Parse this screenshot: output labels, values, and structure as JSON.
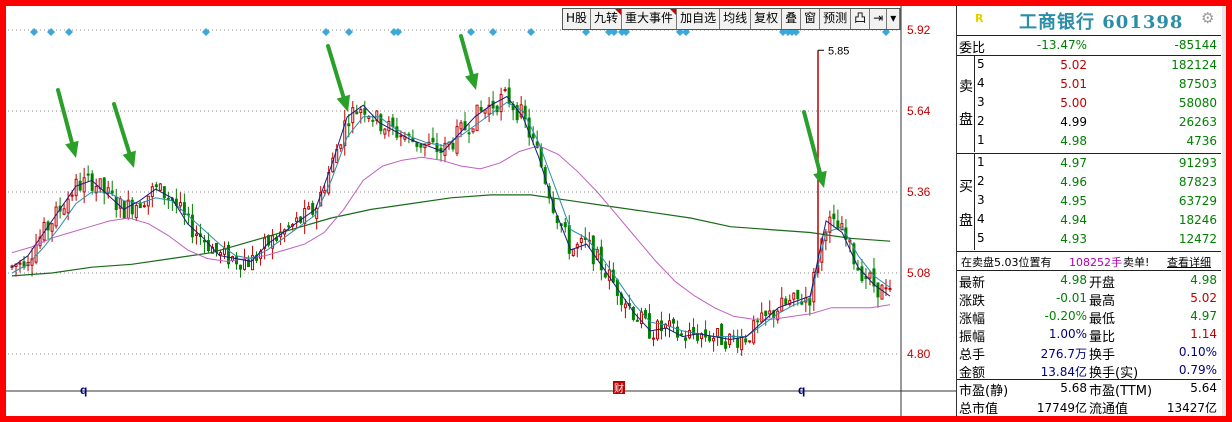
{
  "toolbar": [
    {
      "label": "H股",
      "flag": false
    },
    {
      "label": "九转",
      "flag": true
    },
    {
      "label": "重大事件",
      "flag": true
    },
    {
      "label": "加自选",
      "flag": false
    },
    {
      "label": "均线",
      "flag": false
    },
    {
      "label": "复权",
      "flag": false
    },
    {
      "label": "叠",
      "flag": false
    },
    {
      "label": "窗",
      "flag": false
    },
    {
      "label": "预测",
      "flag": false
    },
    {
      "label": "凸",
      "flag": false
    },
    {
      "label": "⇥",
      "flag": false
    },
    {
      "label": "▾",
      "flag": false
    }
  ],
  "chart": {
    "price_ticks": [
      "5.92",
      "5.64",
      "5.36",
      "5.08",
      "4.80"
    ],
    "high_label": "5.85",
    "bottom_markers": [
      "q",
      "财",
      "q"
    ],
    "colors": {
      "up": "#c00000",
      "down": "#008000",
      "ma5": "#1a1a7a",
      "ma10": "#2a8ea8",
      "ma20": "#c060c0",
      "ma60": "#1a6a1a",
      "diamond": "#3aa8d8",
      "arrow": "#2aa02a",
      "grid": "#888888"
    }
  },
  "chart_data": {
    "type": "candlestick",
    "ylim": [
      4.65,
      5.95
    ],
    "yticks": [
      5.92,
      5.64,
      5.36,
      5.08,
      4.8
    ],
    "high_annotation": 5.85,
    "ma5": [
      5.1,
      5.14,
      5.22,
      5.3,
      5.38,
      5.4,
      5.35,
      5.3,
      5.33,
      5.37,
      5.34,
      5.25,
      5.2,
      5.14,
      5.13,
      5.12,
      5.18,
      5.22,
      5.26,
      5.3,
      5.45,
      5.62,
      5.66,
      5.6,
      5.57,
      5.54,
      5.52,
      5.5,
      5.56,
      5.62,
      5.66,
      5.69,
      5.62,
      5.48,
      5.3,
      5.16,
      5.18,
      5.1,
      5.02,
      4.94,
      4.88,
      4.89,
      4.86,
      4.87,
      4.86,
      4.85,
      4.86,
      4.91,
      4.96,
      4.98,
      5.0,
      5.26,
      5.22,
      5.1,
      5.04,
      5.0
    ],
    "ma10": [
      5.08,
      5.11,
      5.17,
      5.24,
      5.32,
      5.36,
      5.36,
      5.33,
      5.32,
      5.34,
      5.33,
      5.28,
      5.23,
      5.18,
      5.14,
      5.13,
      5.16,
      5.2,
      5.24,
      5.28,
      5.4,
      5.55,
      5.62,
      5.62,
      5.58,
      5.55,
      5.53,
      5.52,
      5.55,
      5.59,
      5.63,
      5.67,
      5.64,
      5.53,
      5.38,
      5.23,
      5.2,
      5.13,
      5.05,
      4.97,
      4.91,
      4.9,
      4.88,
      4.87,
      4.86,
      4.86,
      4.86,
      4.9,
      4.94,
      4.97,
      4.99,
      5.22,
      5.24,
      5.14,
      5.07,
      5.03
    ],
    "ma20": [
      5.15,
      5.17,
      5.2,
      5.22,
      5.24,
      5.26,
      5.27,
      5.25,
      5.21,
      5.16,
      5.13,
      5.12,
      5.13,
      5.14,
      5.16,
      5.18,
      5.22,
      5.3,
      5.4,
      5.45,
      5.47,
      5.48,
      5.47,
      5.45,
      5.44,
      5.46,
      5.5,
      5.52,
      5.49,
      5.43,
      5.36,
      5.28,
      5.2,
      5.12,
      5.05,
      5.0,
      4.96,
      4.93,
      4.92,
      4.92,
      4.93,
      4.94,
      4.96,
      4.96,
      4.96,
      4.97
    ],
    "ma60": [
      5.07,
      5.08,
      5.1,
      5.11,
      5.13,
      5.15,
      5.19,
      5.23,
      5.27,
      5.3,
      5.32,
      5.34,
      5.35,
      5.35,
      5.33,
      5.31,
      5.29,
      5.27,
      5.24,
      5.23,
      5.22,
      5.2,
      5.19
    ],
    "close_last": 4.98
  },
  "quote": {
    "title": "工商银行 601398",
    "r_icon": "R",
    "gear_icon": "gear-icon",
    "weibi": {
      "label": "委比",
      "pct": "-13.47%",
      "diff": "-85144"
    },
    "sell_side_label": [
      "卖",
      "盘"
    ],
    "buy_side_label": [
      "买",
      "盘"
    ],
    "sell": [
      {
        "lvl": "5",
        "price": "5.02",
        "vol": "182124",
        "cls": "red"
      },
      {
        "lvl": "4",
        "price": "5.01",
        "vol": "87503",
        "cls": "red"
      },
      {
        "lvl": "3",
        "price": "5.00",
        "vol": "58080",
        "cls": "red"
      },
      {
        "lvl": "2",
        "price": "4.99",
        "vol": "26263",
        "cls": "blk"
      },
      {
        "lvl": "1",
        "price": "4.98",
        "vol": "4736",
        "cls": "grn"
      }
    ],
    "buy": [
      {
        "lvl": "1",
        "price": "4.97",
        "vol": "91293",
        "cls": "grn"
      },
      {
        "lvl": "2",
        "price": "4.96",
        "vol": "87823",
        "cls": "grn"
      },
      {
        "lvl": "3",
        "price": "4.95",
        "vol": "63729",
        "cls": "grn"
      },
      {
        "lvl": "4",
        "price": "4.94",
        "vol": "18246",
        "cls": "grn"
      },
      {
        "lvl": "5",
        "price": "4.93",
        "vol": "12472",
        "cls": "grn"
      }
    ],
    "notice": {
      "prefix": "在卖盘5.03位置有",
      "amount": "108252手",
      "suffix": "卖单!",
      "link": "查看详细"
    },
    "stats": [
      {
        "l1": "最新",
        "v1": "4.98",
        "c1": "grn",
        "l2": "开盘",
        "v2": "4.98",
        "c2": "grn"
      },
      {
        "l1": "涨跌",
        "v1": "-0.01",
        "c1": "grn",
        "l2": "最高",
        "v2": "5.02",
        "c2": "red"
      },
      {
        "l1": "涨幅",
        "v1": "-0.20%",
        "c1": "grn",
        "l2": "最低",
        "v2": "4.97",
        "c2": "grn"
      },
      {
        "l1": "振幅",
        "v1": "1.00%",
        "c1": "blu",
        "l2": "量比",
        "v2": "1.14",
        "c2": "red"
      },
      {
        "l1": "总手",
        "v1": "276.7万",
        "c1": "blu",
        "l2": "换手",
        "v2": "0.10%",
        "c2": "blu"
      },
      {
        "l1": "金额",
        "v1": "13.84亿",
        "c1": "blu",
        "l2": "换手(实)",
        "v2": "0.79%",
        "c2": "blu"
      },
      {
        "l1": "市盈(静)",
        "v1": "5.68",
        "c1": "blk",
        "l2": "市盈(TTM)",
        "v2": "5.64",
        "c2": "blk"
      },
      {
        "l1": "总市值",
        "v1": "17749亿",
        "c1": "blk",
        "l2": "流通值",
        "v2": "13427亿",
        "c2": "blk"
      }
    ]
  }
}
